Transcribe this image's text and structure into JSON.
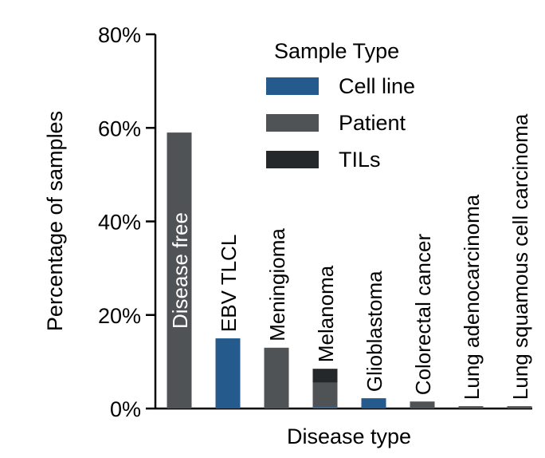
{
  "chart_data": {
    "type": "bar",
    "stacked": true,
    "xlabel": "Disease type",
    "ylabel": "Percentage of samples",
    "ylim": [
      0,
      80
    ],
    "yticks": [
      0,
      20,
      40,
      60,
      80
    ],
    "ytick_labels": [
      "0%",
      "20%",
      "40%",
      "60%",
      "80%"
    ],
    "categories": [
      "Disease free",
      "EBV TLCL",
      "Meningioma",
      "Melanoma",
      "Glioblastoma",
      "Colorectal cancer",
      "Lung adenocarcinoma",
      "Lung squamous cell carcinoma"
    ],
    "legend": {
      "title": "Sample Type",
      "position": "top-right"
    },
    "series": [
      {
        "name": "Cell line",
        "color": "#245a8c",
        "values": [
          0,
          15,
          0,
          0.3,
          2.2,
          0,
          0,
          0
        ]
      },
      {
        "name": "Patient",
        "color": "#505356",
        "values": [
          59,
          0,
          13,
          5.2,
          0,
          1.5,
          0.5,
          0.5
        ]
      },
      {
        "name": "TILs",
        "color": "#25282b",
        "values": [
          0,
          0,
          0,
          3,
          0,
          0,
          0,
          0
        ]
      }
    ]
  }
}
